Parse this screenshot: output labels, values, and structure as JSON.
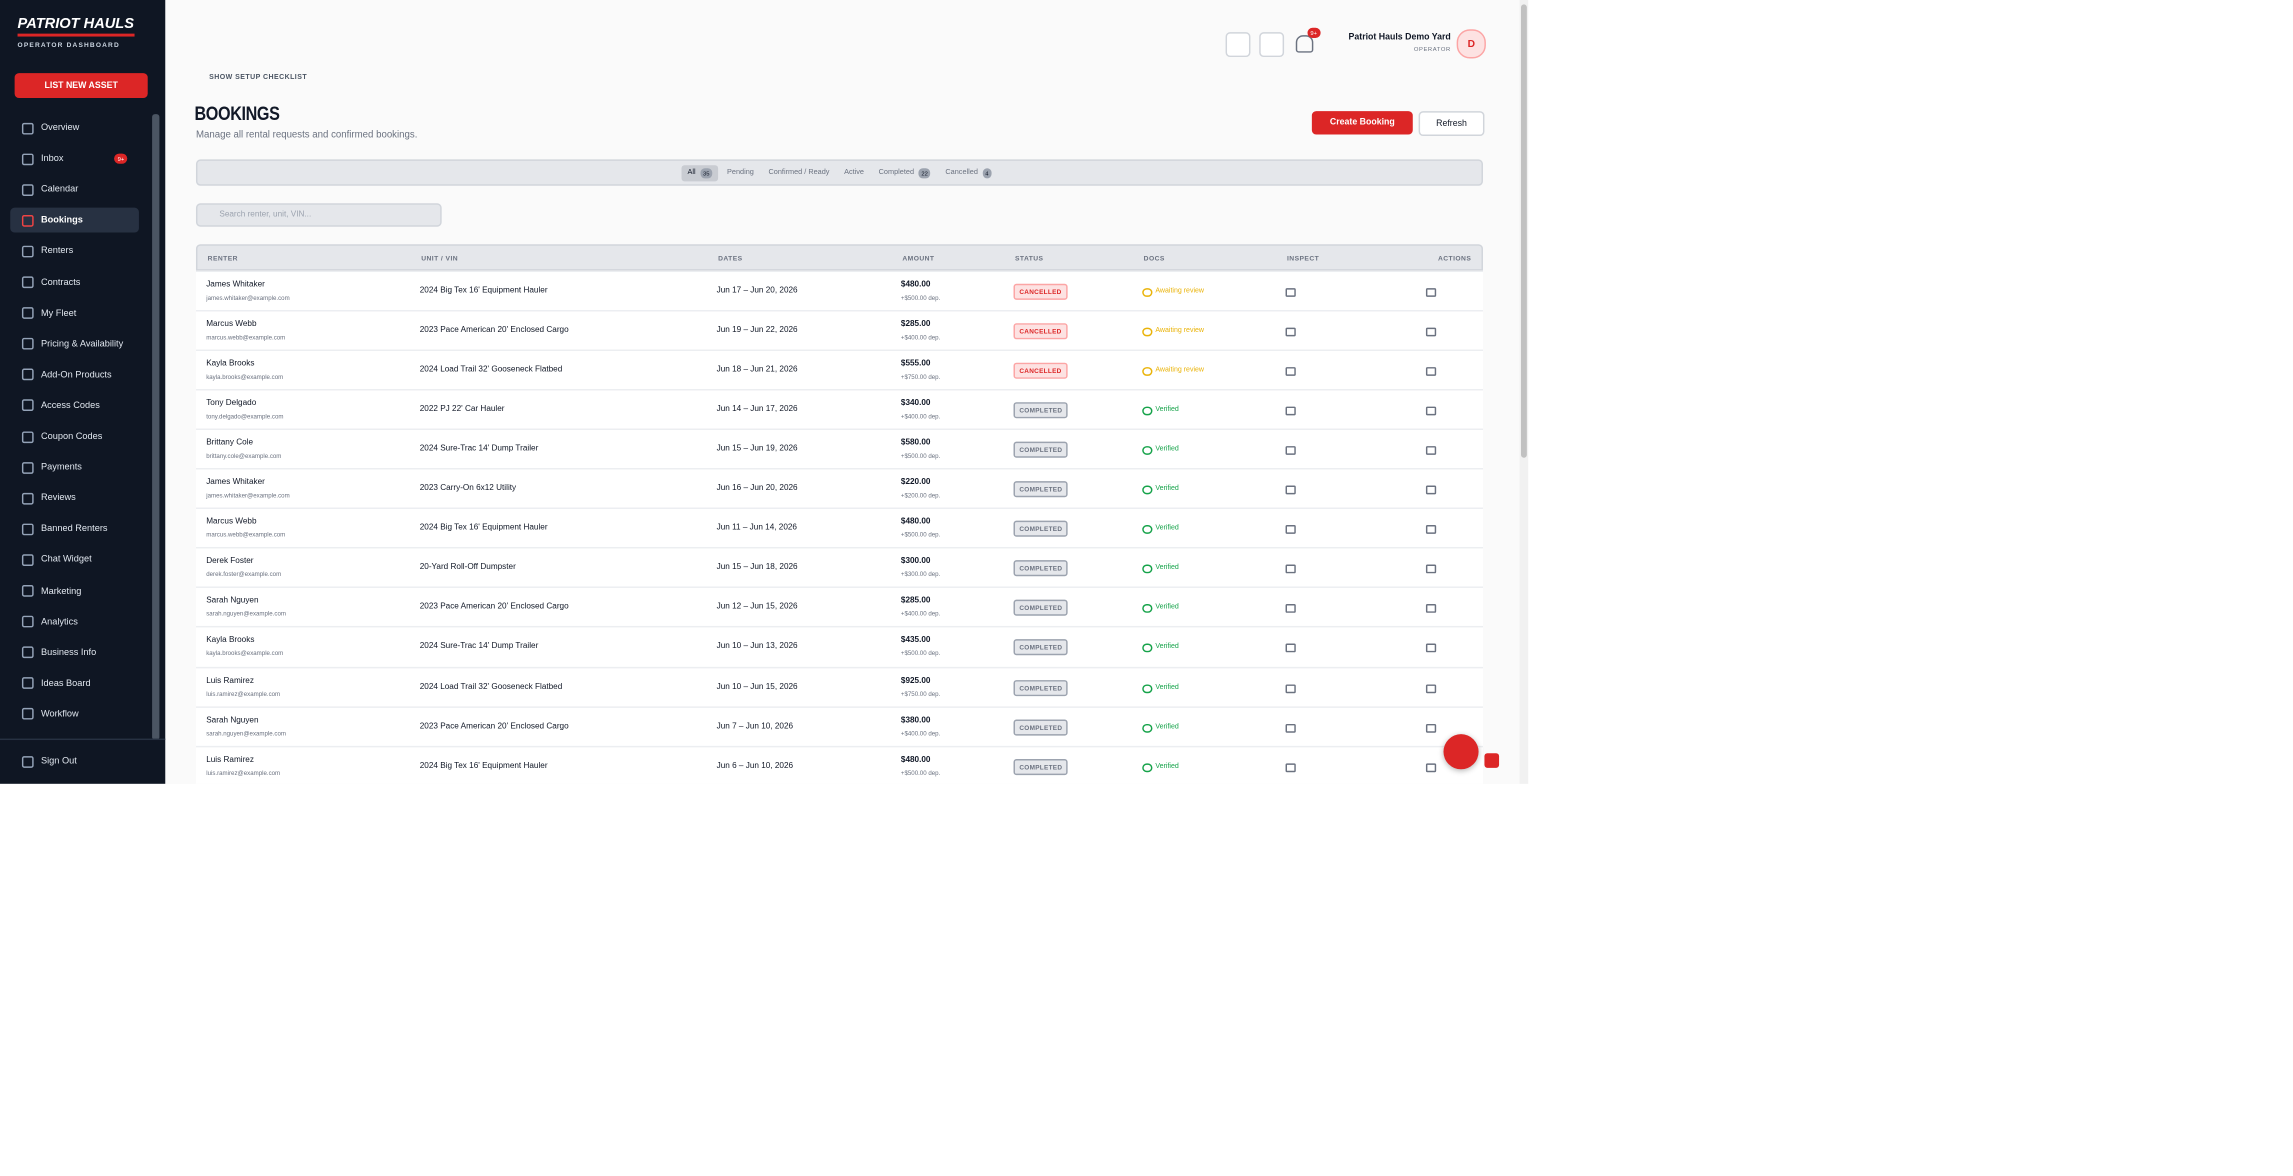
{
  "sidebar": {
    "brand": "PATRIOT HAULS",
    "brand_sub": "OPERATOR DASHBOARD",
    "cta": "LIST NEW ASSET",
    "nav": [
      {
        "label": "Overview"
      },
      {
        "label": "Inbox",
        "badge": "9+"
      },
      {
        "label": "Calendar"
      },
      {
        "label": "Bookings"
      },
      {
        "label": "Renters"
      },
      {
        "label": "Contracts"
      },
      {
        "label": "My Fleet"
      },
      {
        "label": "Pricing & Availability"
      },
      {
        "label": "Add-On Products"
      },
      {
        "label": "Access Codes"
      },
      {
        "label": "Coupon Codes"
      },
      {
        "label": "Payments"
      },
      {
        "label": "Reviews"
      },
      {
        "label": "Banned Renters"
      },
      {
        "label": "Chat Widget"
      },
      {
        "label": "Marketing"
      },
      {
        "label": "Analytics"
      },
      {
        "label": "Business Info"
      },
      {
        "label": "Ideas Board"
      },
      {
        "label": "Workflow"
      }
    ],
    "sign_out": "Sign Out"
  },
  "topbar": {
    "notif_badge": "9+",
    "account_name": "Patriot Hauls Demo Yard",
    "account_role": "OPERATOR",
    "avatar": "D"
  },
  "setup": "SHOW SETUP CHECKLIST",
  "header": {
    "title": "BOOKINGS",
    "subtitle": "Manage all rental requests and confirmed bookings.",
    "create": "Create Booking",
    "refresh": "Refresh"
  },
  "tabs": [
    {
      "label": "All",
      "count": 35
    },
    {
      "label": "Pending"
    },
    {
      "label": "Confirmed / Ready"
    },
    {
      "label": "Active"
    },
    {
      "label": "Completed",
      "count": 22
    },
    {
      "label": "Cancelled",
      "count": 4
    }
  ],
  "search_placeholder": "Search renter, unit, VIN...",
  "table": {
    "columns": [
      "RENTER",
      "UNIT / VIN",
      "DATES",
      "AMOUNT",
      "STATUS",
      "DOCS",
      "INSPECT",
      "ACTIONS"
    ],
    "rows": [
      [
        "James Whitaker",
        "james.whitaker@example.com",
        "2024 Big Tex 16' Equipment Hauler",
        "Jun 17 – Jun 20, 2026",
        "$480.00",
        "+$500.00 dep.",
        "CANCELLED",
        "Awaiting review"
      ],
      [
        "Marcus Webb",
        "marcus.webb@example.com",
        "2023 Pace American 20' Enclosed Cargo",
        "Jun 19 – Jun 22, 2026",
        "$285.00",
        "+$400.00 dep.",
        "CANCELLED",
        "Awaiting review"
      ],
      [
        "Kayla Brooks",
        "kayla.brooks@example.com",
        "2024 Load Trail 32' Gooseneck Flatbed",
        "Jun 18 – Jun 21, 2026",
        "$555.00",
        "+$750.00 dep.",
        "CANCELLED",
        "Awaiting review"
      ],
      [
        "Tony Delgado",
        "tony.delgado@example.com",
        "2022 PJ 22' Car Hauler",
        "Jun 14 – Jun 17, 2026",
        "$340.00",
        "+$400.00 dep.",
        "COMPLETED",
        "Verified"
      ],
      [
        "Brittany Cole",
        "brittany.cole@example.com",
        "2024 Sure-Trac 14' Dump Trailer",
        "Jun 15 – Jun 19, 2026",
        "$580.00",
        "+$500.00 dep.",
        "COMPLETED",
        "Verified"
      ],
      [
        "James Whitaker",
        "james.whitaker@example.com",
        "2023 Carry-On 6x12 Utility",
        "Jun 16 – Jun 20, 2026",
        "$220.00",
        "+$200.00 dep.",
        "COMPLETED",
        "Verified"
      ],
      [
        "Marcus Webb",
        "marcus.webb@example.com",
        "2024 Big Tex 16' Equipment Hauler",
        "Jun 11 – Jun 14, 2026",
        "$480.00",
        "+$500.00 dep.",
        "COMPLETED",
        "Verified"
      ],
      [
        "Derek Foster",
        "derek.foster@example.com",
        "20-Yard Roll-Off Dumpster",
        "Jun 15 – Jun 18, 2026",
        "$300.00",
        "+$300.00 dep.",
        "COMPLETED",
        "Verified"
      ],
      [
        "Sarah Nguyen",
        "sarah.nguyen@example.com",
        "2023 Pace American 20' Enclosed Cargo",
        "Jun 12 – Jun 15, 2026",
        "$285.00",
        "+$400.00 dep.",
        "COMPLETED",
        "Verified"
      ],
      [
        "Kayla Brooks",
        "kayla.brooks@example.com",
        "2024 Sure-Trac 14' Dump Trailer",
        "Jun 10 – Jun 13, 2026",
        "$435.00",
        "+$500.00 dep.",
        "COMPLETED",
        "Verified"
      ],
      [
        "Luis Ramirez",
        "luis.ramirez@example.com",
        "2024 Load Trail 32' Gooseneck Flatbed",
        "Jun 10 – Jun 15, 2026",
        "$925.00",
        "+$750.00 dep.",
        "COMPLETED",
        "Verified"
      ],
      [
        "Sarah Nguyen",
        "sarah.nguyen@example.com",
        "2023 Pace American 20' Enclosed Cargo",
        "Jun 7 – Jun 10, 2026",
        "$380.00",
        "+$400.00 dep.",
        "COMPLETED",
        "Verified"
      ],
      [
        "Luis Ramirez",
        "luis.ramirez@example.com",
        "2024 Big Tex 16' Equipment Hauler",
        "Jun 6 – Jun 10, 2026",
        "$480.00",
        "+$500.00 dep.",
        "COMPLETED",
        "Verified"
      ]
    ]
  }
}
